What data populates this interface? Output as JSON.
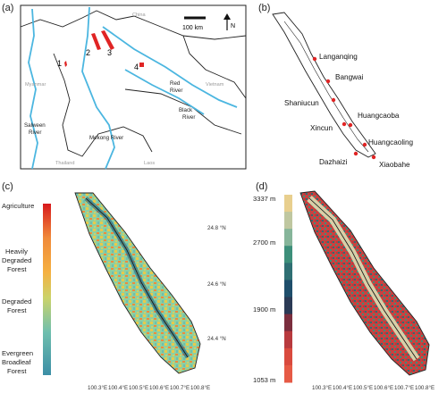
{
  "panels": {
    "a": {
      "letter": "(a)",
      "countries": [
        "China",
        "Myanmar",
        "Vietnam",
        "Thailand",
        "Laos"
      ],
      "rivers": [
        {
          "line1": "Salween",
          "line2": "River"
        },
        {
          "line1": "Mekong River",
          "line2": ""
        },
        {
          "line1": "Red",
          "line2": "River"
        },
        {
          "line1": "Black",
          "line2": "River"
        }
      ],
      "site_numbers": [
        "1",
        "2",
        "3",
        "4"
      ],
      "scale_label": "100 km",
      "north_label": "N"
    },
    "b": {
      "letter": "(b)",
      "sites": [
        "Langanqing",
        "Bangwai",
        "Shaniucun",
        "Huangcaoba",
        "Xincun",
        "Huangcaoling",
        "Dazhaizi",
        "Xiaobahe"
      ]
    },
    "c": {
      "letter": "(c)",
      "legend_labels": [
        "Agriculture",
        "Heavily",
        "Degraded",
        "Forest",
        "Degraded",
        "Forest",
        "Evergreen",
        "Broadleaf",
        "Forest"
      ],
      "legend_colors": [
        "#d7191c",
        "#e8542a",
        "#f08a3a",
        "#f5b041",
        "#e9c94a",
        "#cbd36a",
        "#9ccc8a",
        "#6fbfae",
        "#4fa7b8",
        "#3c8fa6"
      ],
      "lat_ticks": [
        "24.8 °N",
        "24.6 °N",
        "24.4 °N"
      ],
      "lon_ticks": [
        "100.3°E",
        "100.4°E",
        "100.5°E",
        "100.6°E",
        "100.7°E",
        "100.8°E"
      ]
    },
    "d": {
      "letter": "(d)",
      "elevation_ticks": [
        "3337 m",
        "2700 m",
        "1900 m",
        "1053 m"
      ],
      "elevation_colors": [
        "#e8cf8e",
        "#bfc7a0",
        "#86b59a",
        "#3d8f7a",
        "#2f6f73",
        "#1f4e6b",
        "#2b3a55",
        "#7b2e3e",
        "#b83a3e",
        "#d94a3e",
        "#e65a45"
      ],
      "lon_ticks": [
        "100.3°E",
        "100.4°E",
        "100.5°E",
        "100.6°E",
        "100.7°E",
        "100.8°E"
      ]
    }
  }
}
